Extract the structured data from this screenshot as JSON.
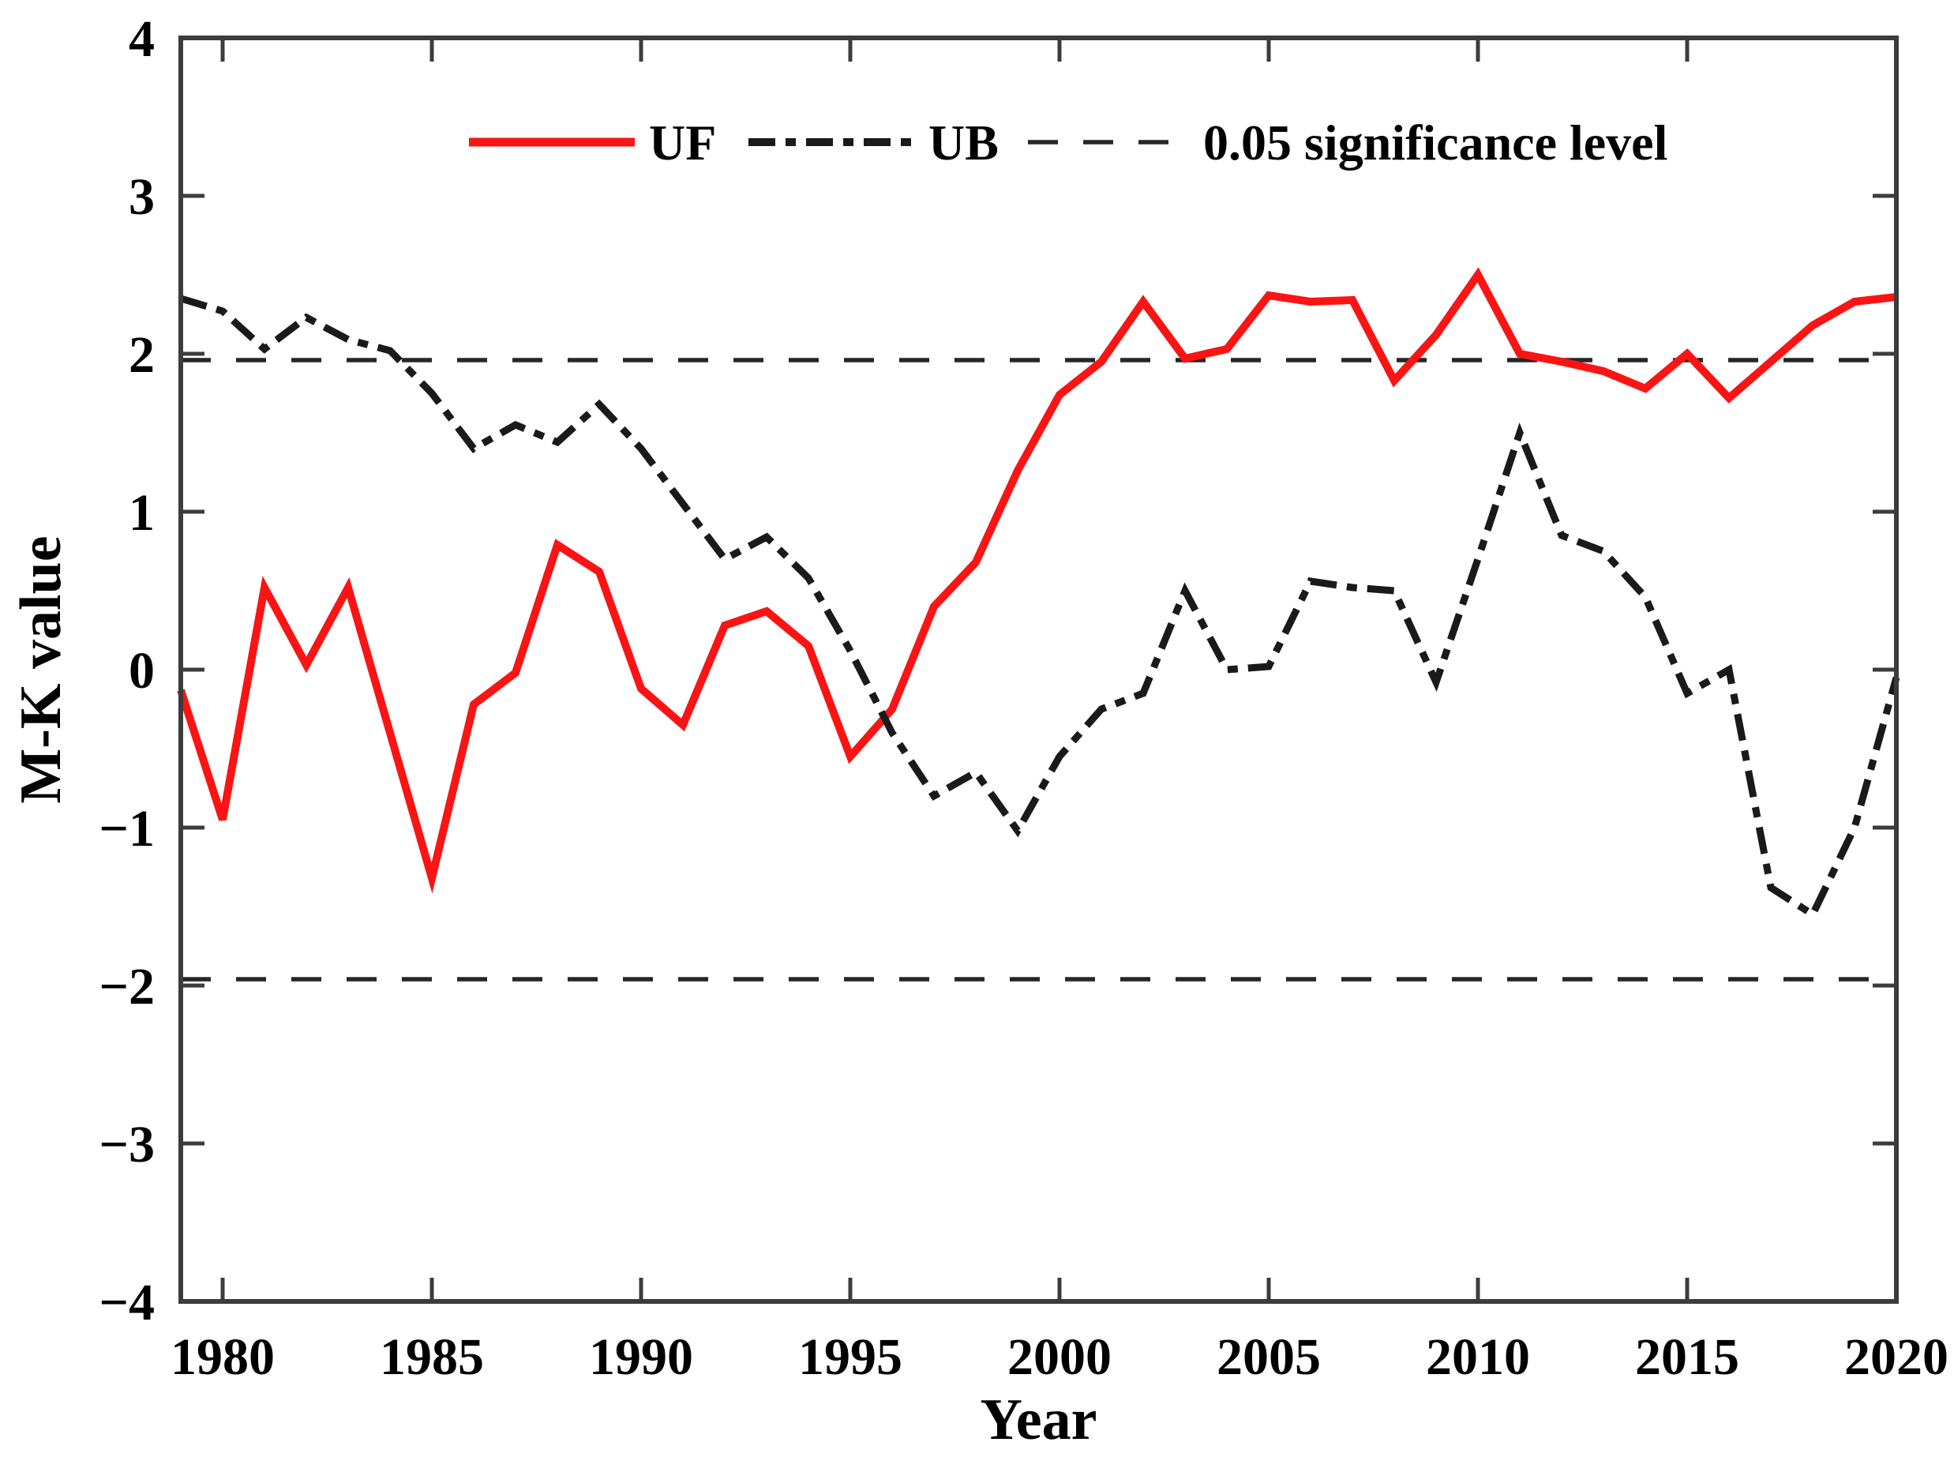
{
  "figure": {
    "background": "#ffffff",
    "xlabel": "Year",
    "ylabel": "M-K value"
  },
  "chart_data": {
    "type": "line",
    "title": "",
    "xlabel": "Year",
    "ylabel": "M-K value",
    "xlim": [
      1979,
      2020
    ],
    "ylim": [
      -4,
      4
    ],
    "grid": false,
    "legend_position": "top-center-inside",
    "xticks": [
      1980,
      1985,
      1990,
      1995,
      2000,
      2005,
      2010,
      2015,
      2020
    ],
    "yticks": [
      4,
      3,
      2,
      1,
      0,
      -1,
      -2,
      -3,
      -4
    ],
    "x": [
      1979,
      1980,
      1981,
      1982,
      1983,
      1984,
      1985,
      1986,
      1987,
      1988,
      1989,
      1990,
      1991,
      1992,
      1993,
      1994,
      1995,
      1996,
      1997,
      1998,
      1999,
      2000,
      2001,
      2002,
      2003,
      2004,
      2005,
      2006,
      2007,
      2008,
      2009,
      2010,
      2011,
      2012,
      2013,
      2014,
      2015,
      2016,
      2017,
      2018,
      2019,
      2020
    ],
    "series": [
      {
        "name": "UF",
        "color": "#fa1414",
        "style": "solid",
        "line_width": 10,
        "values": [
          -0.13,
          -0.95,
          0.52,
          0.03,
          0.52,
          -0.4,
          -1.32,
          -0.22,
          -0.02,
          0.79,
          0.62,
          -0.12,
          -0.35,
          0.28,
          0.37,
          0.15,
          -0.55,
          -0.25,
          0.4,
          0.68,
          1.26,
          1.74,
          1.95,
          2.33,
          1.97,
          2.03,
          2.37,
          2.33,
          2.34,
          1.83,
          2.12,
          2.5,
          2.0,
          1.95,
          1.89,
          1.78,
          2.0,
          1.72,
          1.95,
          2.18,
          2.33,
          2.36
        ]
      },
      {
        "name": "UB",
        "color": "#1a1a1a",
        "style": "dashdot",
        "line_width": 9,
        "values": [
          2.35,
          2.27,
          2.03,
          2.23,
          2.09,
          2.02,
          1.75,
          1.4,
          1.55,
          1.44,
          1.68,
          1.4,
          1.05,
          0.7,
          0.84,
          0.58,
          0.12,
          -0.4,
          -0.8,
          -0.65,
          -1.02,
          -0.55,
          -0.25,
          -0.15,
          0.5,
          0.0,
          0.02,
          0.56,
          0.52,
          0.5,
          -0.08,
          0.7,
          1.5,
          0.85,
          0.75,
          0.46,
          -0.15,
          0.0,
          -1.38,
          -1.55,
          -1.0,
          -0.05
        ]
      }
    ],
    "reference_lines": [
      {
        "label": "0.05 significance level",
        "style": "dashed",
        "color": "#262626",
        "values": [
          1.96,
          -1.96
        ]
      }
    ],
    "legend": [
      "UF",
      "UB",
      "0.05 significance level"
    ]
  }
}
